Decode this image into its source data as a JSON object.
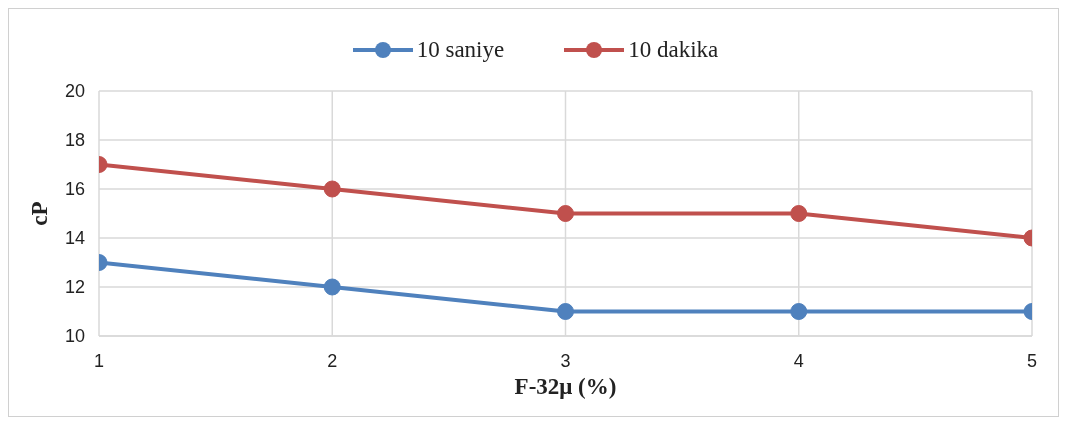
{
  "chart_data": {
    "type": "line",
    "xlabel": "F-32μ (%)",
    "ylabel": "cP",
    "x": [
      1,
      2,
      3,
      4,
      5
    ],
    "series": [
      {
        "name": "10 saniye",
        "color": "#4f81bd",
        "values": [
          13,
          12,
          11,
          11,
          11
        ]
      },
      {
        "name": "10 dakika",
        "color": "#c0504d",
        "values": [
          17,
          16,
          15,
          15,
          14
        ]
      }
    ],
    "xlim": [
      1,
      5
    ],
    "xticks": [
      1,
      2,
      3,
      4,
      5
    ],
    "ylim": [
      10,
      20
    ],
    "yticks": [
      10,
      12,
      14,
      16,
      18,
      20
    ],
    "grid": true,
    "legend": "top",
    "marker": "circle",
    "line_style": "solid"
  }
}
